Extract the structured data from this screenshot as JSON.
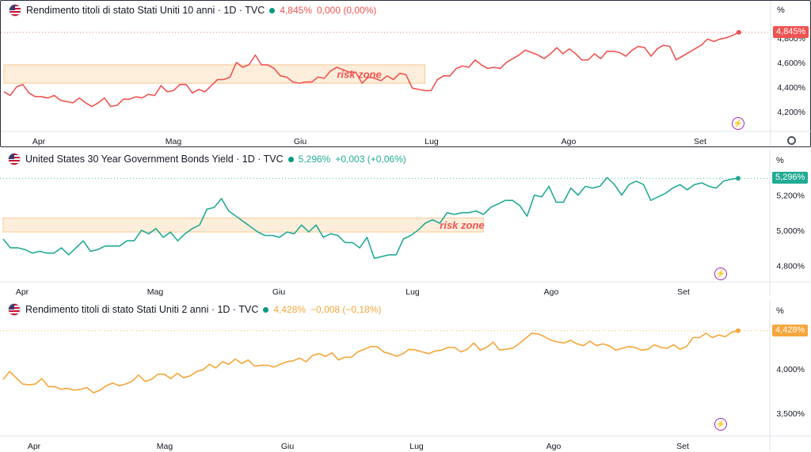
{
  "chart_data": [
    {
      "type": "line",
      "title": "Rendimento titoli di stato Stati Uniti 10 anni · 1D · TVC",
      "last_value": "4,845%",
      "change": "0,000 (0,00%)",
      "last_label": "4,845%",
      "unit": "%",
      "color": "#ef5350",
      "change_color": "#ef5350",
      "x_ticks": [
        "Apr",
        "Mag",
        "Giu",
        "Lug",
        "Ago",
        "Set"
      ],
      "y_ticks": [
        "4,200%",
        "4,400%",
        "4,600%",
        "4,800%"
      ],
      "ylim": [
        4.05,
        4.96
      ],
      "annotation": {
        "text": "risk zone",
        "y_range": [
          4.43,
          4.58
        ],
        "x_range": [
          0,
          67
        ],
        "label_x": 53
      },
      "values": [
        4.36,
        4.33,
        4.4,
        4.42,
        4.35,
        4.32,
        4.32,
        4.31,
        4.33,
        4.29,
        4.28,
        4.27,
        4.31,
        4.27,
        4.24,
        4.27,
        4.31,
        4.24,
        4.25,
        4.3,
        4.3,
        4.32,
        4.31,
        4.34,
        4.33,
        4.41,
        4.36,
        4.37,
        4.42,
        4.42,
        4.35,
        4.38,
        4.36,
        4.41,
        4.46,
        4.46,
        4.48,
        4.6,
        4.56,
        4.58,
        4.66,
        4.58,
        4.58,
        4.55,
        4.49,
        4.48,
        4.44,
        4.43,
        4.44,
        4.44,
        4.48,
        4.47,
        4.53,
        4.56,
        4.54,
        4.52,
        4.52,
        4.43,
        4.48,
        4.47,
        4.45,
        4.49,
        4.46,
        4.51,
        4.5,
        4.39,
        4.38,
        4.37,
        4.37,
        4.46,
        4.49,
        4.49,
        4.55,
        4.57,
        4.56,
        4.62,
        4.58,
        4.55,
        4.56,
        4.55,
        4.6,
        4.63,
        4.66,
        4.7,
        4.68,
        4.66,
        4.63,
        4.67,
        4.72,
        4.67,
        4.71,
        4.67,
        4.62,
        4.62,
        4.67,
        4.63,
        4.69,
        4.69,
        4.68,
        4.65,
        4.7,
        4.73,
        4.72,
        4.65,
        4.71,
        4.74,
        4.73,
        4.62,
        4.65,
        4.68,
        4.71,
        4.74,
        4.79,
        4.77,
        4.79,
        4.8,
        4.82,
        4.845
      ]
    },
    {
      "type": "line",
      "title": "United States 30 Year Government Bonds Yield · 1D · TVC",
      "last_value": "5,296%",
      "change": "+0,003 (+0,06%)",
      "last_label": "5,296%",
      "unit": "%",
      "color": "#22ab94",
      "change_color": "#22ab94",
      "x_ticks": [
        "Apr",
        "Mag",
        "Giu",
        "Lug",
        "Ago",
        "Set"
      ],
      "y_ticks": [
        "4,800%",
        "5,000%",
        "5,200%"
      ],
      "ylim": [
        4.72,
        5.36
      ],
      "annotation": {
        "text": "risk zone",
        "y_range": [
          4.99,
          5.07
        ],
        "x_range": [
          0,
          66
        ],
        "label_x": 60
      },
      "values": [
        4.95,
        4.9,
        4.9,
        4.89,
        4.87,
        4.88,
        4.87,
        4.87,
        4.9,
        4.86,
        4.9,
        4.94,
        4.88,
        4.89,
        4.91,
        4.91,
        4.91,
        4.94,
        4.94,
        5.0,
        4.98,
        5.01,
        4.96,
        4.99,
        4.94,
        4.98,
        5.01,
        5.03,
        5.12,
        5.13,
        5.18,
        5.11,
        5.08,
        5.05,
        5.02,
        4.99,
        4.97,
        4.97,
        4.96,
        4.99,
        4.98,
        5.03,
        4.99,
        5.03,
        4.96,
        4.98,
        4.97,
        4.93,
        4.93,
        4.9,
        4.96,
        4.84,
        4.85,
        4.86,
        4.86,
        4.95,
        4.97,
        5.0,
        5.04,
        5.06,
        5.04,
        5.1,
        5.09,
        5.1,
        5.1,
        5.11,
        5.09,
        5.13,
        5.15,
        5.17,
        5.17,
        5.14,
        5.08,
        5.2,
        5.19,
        5.25,
        5.16,
        5.16,
        5.24,
        5.2,
        5.25,
        5.24,
        5.25,
        5.3,
        5.26,
        5.2,
        5.26,
        5.28,
        5.26,
        5.17,
        5.19,
        5.21,
        5.24,
        5.26,
        5.23,
        5.26,
        5.27,
        5.25,
        5.24,
        5.28,
        5.29,
        5.296
      ]
    },
    {
      "type": "line",
      "title": "Rendimento titoli di stato Stati Uniti 2 anni · 1D · TVC",
      "last_value": "4,428%",
      "change": "−0,008 (−0,18%)",
      "last_label": "4,428%",
      "unit": "%",
      "color": "#f6a63a",
      "change_color": "#f6a63a",
      "x_ticks": [
        "Apr",
        "Mag",
        "Giu",
        "Lug",
        "Ago",
        "Set"
      ],
      "y_ticks": [
        "3,500%",
        "4,000%"
      ],
      "ylim": [
        3.28,
        4.55
      ],
      "values": [
        3.88,
        3.97,
        3.9,
        3.83,
        3.82,
        3.83,
        3.89,
        3.8,
        3.8,
        3.77,
        3.78,
        3.76,
        3.77,
        3.79,
        3.73,
        3.76,
        3.81,
        3.84,
        3.81,
        3.83,
        3.86,
        3.93,
        3.86,
        3.88,
        3.94,
        3.94,
        3.89,
        3.95,
        3.9,
        3.92,
        3.97,
        3.99,
        4.05,
        4.01,
        4.08,
        4.05,
        4.11,
        4.06,
        4.1,
        4.03,
        4.04,
        4.04,
        4.02,
        4.05,
        4.08,
        4.09,
        4.12,
        4.08,
        4.15,
        4.17,
        4.14,
        4.18,
        4.1,
        4.13,
        4.13,
        4.19,
        4.22,
        4.25,
        4.25,
        4.19,
        4.17,
        4.14,
        4.17,
        4.22,
        4.21,
        4.19,
        4.17,
        4.2,
        4.21,
        4.24,
        4.24,
        4.19,
        4.22,
        4.29,
        4.21,
        4.24,
        4.3,
        4.21,
        4.22,
        4.23,
        4.28,
        4.34,
        4.4,
        4.39,
        4.36,
        4.32,
        4.3,
        4.29,
        4.32,
        4.28,
        4.26,
        4.31,
        4.26,
        4.28,
        4.26,
        4.21,
        4.23,
        4.25,
        4.24,
        4.21,
        4.22,
        4.27,
        4.24,
        4.23,
        4.27,
        4.22,
        4.25,
        4.35,
        4.35,
        4.4,
        4.35,
        4.38,
        4.36,
        4.41,
        4.428
      ]
    }
  ]
}
